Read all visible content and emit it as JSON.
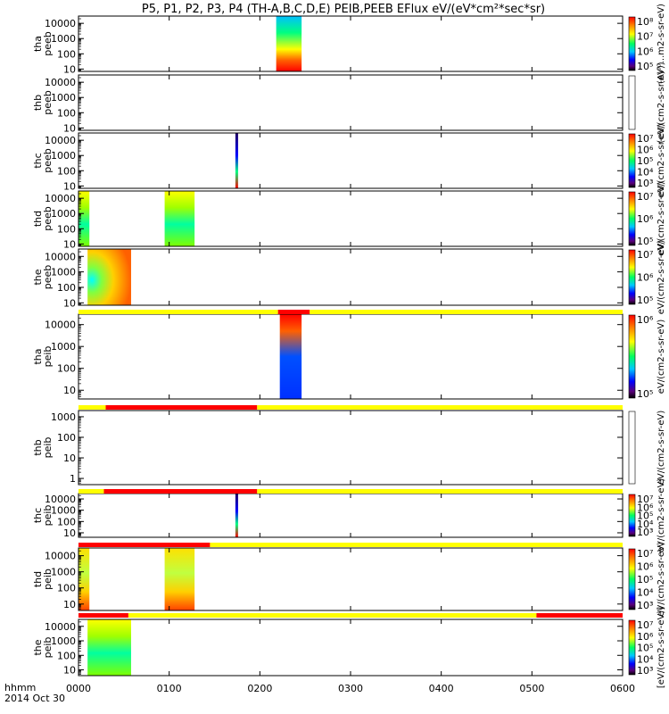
{
  "title": "P5, P1, P2, P3, P4 (TH-A,B,C,D,E) PEIB,PEEB EFlux eV/(eV*cm²*sec*sr)",
  "x_axis": {
    "label_line1": "hhmm",
    "label_line2": "2014 Oct 30",
    "ticks": [
      "0000",
      "0100",
      "0200",
      "0300",
      "0400",
      "0500",
      "0600"
    ]
  },
  "colors": {
    "flag_good": "#ffff00",
    "flag_bad": "#ff0000"
  },
  "chart_data": {
    "type": "heatmap",
    "x_range_hours": [
      0,
      6
    ],
    "y_scale": "log",
    "panels": [
      {
        "id": "tha-peeb",
        "ylabel": [
          "tha",
          "peeb"
        ],
        "ylim": [
          7,
          30000
        ],
        "yticks": [
          "10000",
          "1000",
          "100",
          "10"
        ],
        "cbar_ticks": [
          "10⁸",
          "10⁷",
          "10⁶",
          "10⁵"
        ],
        "cbar_label": "(A)⁰⁰...m2-s-sr-eV)",
        "data_blocks": [
          {
            "t0": 2.18,
            "t1": 2.46
          }
        ]
      },
      {
        "id": "thb-peeb",
        "ylabel": [
          "thb",
          "peeb"
        ],
        "ylim": [
          7,
          30000
        ],
        "yticks": [
          "10000",
          "1000",
          "100",
          "10"
        ],
        "cbar_ticks": [],
        "cbar_label": "(eV/(cm2-s-sr-eV))",
        "data_blocks": []
      },
      {
        "id": "thc-peeb",
        "ylabel": [
          "thc",
          "peeb"
        ],
        "ylim": [
          7,
          30000
        ],
        "yticks": [
          "10000",
          "1000",
          "100",
          "10"
        ],
        "cbar_ticks": [
          "10⁷",
          "10⁶",
          "10⁵",
          "10⁴",
          "10³"
        ],
        "cbar_label": "eV/(cm2-s-sr-eV)",
        "data_blocks": [
          {
            "t0": 1.73,
            "t1": 1.76
          }
        ]
      },
      {
        "id": "thd-peeb",
        "ylabel": [
          "thd",
          "peeb"
        ],
        "ylim": [
          7,
          30000
        ],
        "yticks": [
          "10000",
          "1000",
          "100",
          "10"
        ],
        "cbar_ticks": [
          "10⁷",
          "10⁶",
          "10⁵"
        ],
        "cbar_label": "eV/(cm2-s-sr-eV)",
        "data_blocks": [
          {
            "t0": 0.0,
            "t1": 0.12
          },
          {
            "t0": 0.95,
            "t1": 1.28
          }
        ]
      },
      {
        "id": "the-peeb",
        "ylabel": [
          "the",
          "peeb"
        ],
        "ylim": [
          7,
          30000
        ],
        "yticks": [
          "10000",
          "1000",
          "100",
          "10"
        ],
        "cbar_ticks": [
          "10⁷",
          "10⁶",
          "10⁵"
        ],
        "cbar_label": "eV/(cm2-s-sr-eV)",
        "data_blocks": [
          {
            "t0": 0.1,
            "t1": 0.58
          }
        ]
      },
      {
        "id": "tha-peib",
        "ylabel": [
          "tha",
          "peib"
        ],
        "ylim": [
          4,
          30000
        ],
        "yticks": [
          "10000",
          "1000",
          "100",
          "10"
        ],
        "cbar_ticks": [
          "10⁶",
          "10⁵"
        ],
        "cbar_label": "eV/(cm2-s-sr-eV)",
        "data_blocks": [
          {
            "t0": 2.22,
            "t1": 2.46
          }
        ],
        "flag_bar": [
          {
            "t0": 0,
            "t1": 2.2,
            "state": "good"
          },
          {
            "t0": 2.2,
            "t1": 2.55,
            "state": "bad"
          },
          {
            "t0": 2.55,
            "t1": 6,
            "state": "good"
          }
        ]
      },
      {
        "id": "thb-peib",
        "ylabel": [
          "thb",
          "peib"
        ],
        "ylim": [
          0.5,
          2000
        ],
        "yticks": [
          "1000",
          "100",
          "10",
          "1"
        ],
        "cbar_ticks": [],
        "cbar_label": "eV/(cm2-s-sr-eV)",
        "data_blocks": [],
        "flag_bar": [
          {
            "t0": 0,
            "t1": 0.3,
            "state": "good"
          },
          {
            "t0": 0.3,
            "t1": 1.97,
            "state": "bad"
          },
          {
            "t0": 1.97,
            "t1": 6,
            "state": "good"
          }
        ]
      },
      {
        "id": "thc-peib",
        "ylabel": [
          "thc",
          "peib"
        ],
        "ylim": [
          4,
          30000
        ],
        "yticks": [
          "10000",
          "1000",
          "100",
          "10"
        ],
        "cbar_ticks": [
          "10⁷",
          "10⁶",
          "10⁵",
          "10⁴",
          "10³"
        ],
        "cbar_label": "eV/(cm2-s-sr-eV)",
        "data_blocks": [
          {
            "t0": 1.73,
            "t1": 1.76
          }
        ],
        "flag_bar": [
          {
            "t0": 0,
            "t1": 0.28,
            "state": "good"
          },
          {
            "t0": 0.28,
            "t1": 1.97,
            "state": "bad"
          },
          {
            "t0": 1.97,
            "t1": 6,
            "state": "good"
          }
        ]
      },
      {
        "id": "thd-peib",
        "ylabel": [
          "thd",
          "peib"
        ],
        "ylim": [
          4,
          30000
        ],
        "yticks": [
          "10000",
          "1000",
          "100",
          "10"
        ],
        "cbar_ticks": [
          "10⁷",
          "10⁶",
          "10⁵",
          "10⁴",
          "10³"
        ],
        "cbar_label": "eV/(cm2-s-sr-eV)",
        "data_blocks": [
          {
            "t0": 0.0,
            "t1": 0.12
          },
          {
            "t0": 0.95,
            "t1": 1.28
          }
        ],
        "flag_bar": [
          {
            "t0": 0,
            "t1": 1.45,
            "state": "bad"
          },
          {
            "t0": 1.45,
            "t1": 6,
            "state": "good"
          }
        ]
      },
      {
        "id": "the-peib",
        "ylabel": [
          "the",
          "peib"
        ],
        "ylim": [
          4,
          30000
        ],
        "yticks": [
          "10000",
          "1000",
          "100",
          "10"
        ],
        "cbar_ticks": [
          "10⁷",
          "10⁶",
          "10⁵",
          "10⁴",
          "10³"
        ],
        "cbar_label": "[eV/(cm2-s-sr-eV)]",
        "data_blocks": [
          {
            "t0": 0.1,
            "t1": 0.58
          }
        ],
        "flag_bar": [
          {
            "t0": 0,
            "t1": 0.55,
            "state": "bad"
          },
          {
            "t0": 0.55,
            "t1": 5.05,
            "state": "good"
          },
          {
            "t0": 5.05,
            "t1": 6,
            "state": "bad"
          }
        ]
      }
    ]
  }
}
